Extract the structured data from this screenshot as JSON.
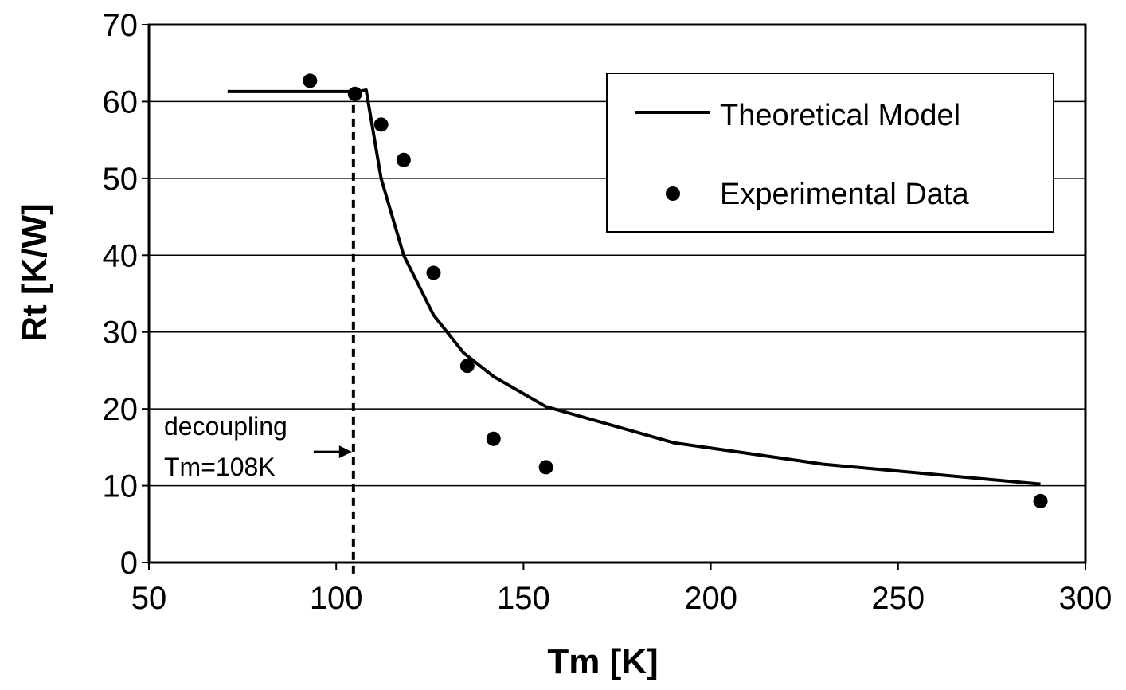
{
  "chart_data": {
    "type": "line",
    "title": "",
    "xlabel": "Tm [K]",
    "ylabel": "Rt [K/W]",
    "xlim": [
      50,
      300
    ],
    "ylim": [
      0,
      70
    ],
    "x_ticks": [
      50,
      100,
      150,
      200,
      250,
      300
    ],
    "y_ticks": [
      0,
      10,
      20,
      30,
      40,
      50,
      60,
      70
    ],
    "grid": "horizontal",
    "legend_position": "top-right",
    "colors": {
      "line": "#000000",
      "marker": "#000000",
      "grid": "#000000"
    },
    "series": [
      {
        "name": "Theoretical Model",
        "kind": "line",
        "x": [
          71,
          106,
          108,
          112,
          118,
          126,
          134,
          142,
          156,
          190,
          230,
          288
        ],
        "y": [
          61.3,
          61.3,
          61.5,
          50,
          40,
          32.2,
          27.3,
          24.2,
          20.3,
          15.6,
          12.8,
          10.2
        ]
      },
      {
        "name": "Experimental Data",
        "kind": "scatter",
        "x": [
          93,
          105,
          112,
          118,
          126,
          135,
          142,
          156,
          288
        ],
        "y": [
          62.7,
          61.0,
          57.0,
          52.4,
          37.7,
          25.6,
          16.1,
          12.4,
          8.0
        ]
      }
    ],
    "annotations": [
      {
        "line1": "decoupling",
        "line2": "Tm=108K",
        "x": 108,
        "kind": "vertical-dashed-line-with-arrow"
      }
    ]
  }
}
